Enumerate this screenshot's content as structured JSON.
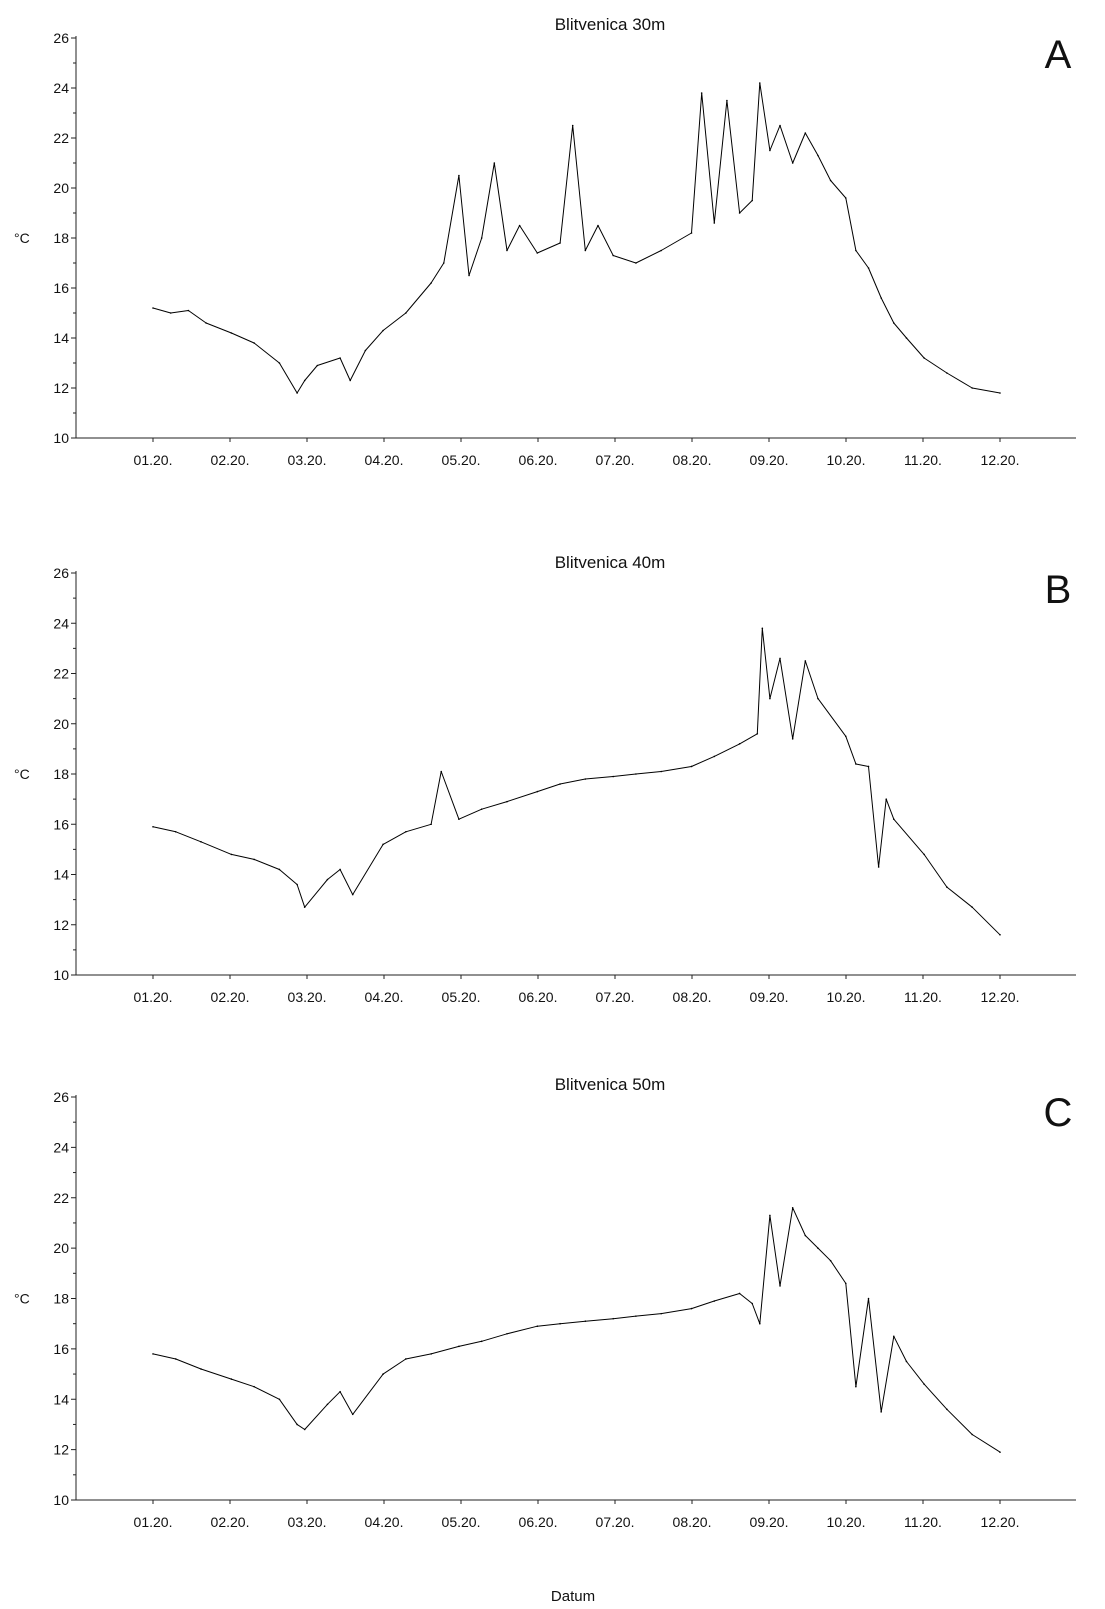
{
  "xlabel": "Datum",
  "chart_data": [
    {
      "type": "line",
      "title": "Blitvenica 30m",
      "panel_label": "A",
      "ylabel": "°C",
      "xlabel": "",
      "ylim": [
        10,
        26
      ],
      "yticks": [
        10,
        12,
        14,
        16,
        18,
        20,
        22,
        24,
        26
      ],
      "xlim": [
        "2020-01-01",
        "2020-12-01"
      ],
      "xtick_labels": [
        "01.20.",
        "02.20.",
        "03.20.",
        "04.20.",
        "05.20.",
        "06.20.",
        "07.20.",
        "08.20.",
        "09.20.",
        "10.20.",
        "11.20.",
        "12.20."
      ],
      "series": [
        {
          "x": [
            "2020-01-01",
            "2020-01-08",
            "2020-01-15",
            "2020-01-22",
            "2020-02-01",
            "2020-02-10",
            "2020-02-20",
            "2020-02-27",
            "2020-03-01",
            "2020-03-06",
            "2020-03-15",
            "2020-03-19",
            "2020-03-25",
            "2020-04-01",
            "2020-04-10",
            "2020-04-20",
            "2020-04-25",
            "2020-05-01",
            "2020-05-05",
            "2020-05-10",
            "2020-05-15",
            "2020-05-20",
            "2020-05-25",
            "2020-06-01",
            "2020-06-10",
            "2020-06-15",
            "2020-06-20",
            "2020-06-25",
            "2020-07-01",
            "2020-07-10",
            "2020-07-20",
            "2020-08-01",
            "2020-08-05",
            "2020-08-10",
            "2020-08-15",
            "2020-08-20",
            "2020-08-25",
            "2020-08-28",
            "2020-09-01",
            "2020-09-05",
            "2020-09-10",
            "2020-09-15",
            "2020-09-20",
            "2020-09-25",
            "2020-10-01",
            "2020-10-05",
            "2020-10-10",
            "2020-10-15",
            "2020-10-20",
            "2020-10-25",
            "2020-11-01",
            "2020-11-10",
            "2020-11-20",
            "2020-12-01"
          ],
          "y": [
            15.2,
            15.0,
            15.1,
            14.6,
            14.2,
            13.8,
            13.0,
            11.8,
            12.3,
            12.9,
            13.2,
            12.3,
            13.5,
            14.3,
            15.0,
            16.2,
            17.0,
            20.5,
            16.5,
            18.0,
            21.0,
            17.5,
            18.5,
            17.4,
            17.8,
            22.5,
            17.5,
            18.5,
            17.3,
            17.0,
            17.5,
            18.2,
            23.8,
            18.6,
            23.5,
            19.0,
            19.5,
            24.2,
            21.5,
            22.5,
            21.0,
            22.2,
            21.3,
            20.3,
            19.6,
            17.5,
            16.8,
            15.6,
            14.6,
            14.0,
            13.2,
            12.6,
            12.0,
            11.8
          ]
        }
      ]
    },
    {
      "type": "line",
      "title": "Blitvenica 40m",
      "panel_label": "B",
      "ylabel": "°C",
      "xlabel": "",
      "ylim": [
        10,
        26
      ],
      "yticks": [
        10,
        12,
        14,
        16,
        18,
        20,
        22,
        24,
        26
      ],
      "xlim": [
        "2020-01-01",
        "2020-12-01"
      ],
      "xtick_labels": [
        "01.20.",
        "02.20.",
        "03.20.",
        "04.20.",
        "05.20.",
        "06.20.",
        "07.20.",
        "08.20.",
        "09.20.",
        "10.20.",
        "11.20.",
        "12.20."
      ],
      "series": [
        {
          "x": [
            "2020-01-01",
            "2020-01-10",
            "2020-01-20",
            "2020-02-01",
            "2020-02-10",
            "2020-02-20",
            "2020-02-27",
            "2020-03-01",
            "2020-03-10",
            "2020-03-15",
            "2020-03-20",
            "2020-04-01",
            "2020-04-10",
            "2020-04-20",
            "2020-04-24",
            "2020-05-01",
            "2020-05-10",
            "2020-05-20",
            "2020-06-01",
            "2020-06-10",
            "2020-06-20",
            "2020-07-01",
            "2020-07-10",
            "2020-07-20",
            "2020-08-01",
            "2020-08-10",
            "2020-08-20",
            "2020-08-27",
            "2020-08-29",
            "2020-09-01",
            "2020-09-05",
            "2020-09-10",
            "2020-09-15",
            "2020-09-20",
            "2020-10-01",
            "2020-10-05",
            "2020-10-10",
            "2020-10-14",
            "2020-10-17",
            "2020-10-20",
            "2020-11-01",
            "2020-11-10",
            "2020-11-20",
            "2020-12-01"
          ],
          "y": [
            15.9,
            15.7,
            15.3,
            14.8,
            14.6,
            14.2,
            13.6,
            12.7,
            13.8,
            14.2,
            13.2,
            15.2,
            15.7,
            16.0,
            18.1,
            16.2,
            16.6,
            16.9,
            17.3,
            17.6,
            17.8,
            17.9,
            18.0,
            18.1,
            18.3,
            18.7,
            19.2,
            19.6,
            23.8,
            21.0,
            22.6,
            19.4,
            22.5,
            21.0,
            19.5,
            18.4,
            18.3,
            14.3,
            17.0,
            16.2,
            14.8,
            13.5,
            12.7,
            11.6
          ]
        }
      ]
    },
    {
      "type": "line",
      "title": "Blitvenica 50m",
      "panel_label": "C",
      "ylabel": "°C",
      "xlabel": "Datum",
      "ylim": [
        10,
        26
      ],
      "yticks": [
        10,
        12,
        14,
        16,
        18,
        20,
        22,
        24,
        26
      ],
      "xlim": [
        "2020-01-01",
        "2020-12-01"
      ],
      "xtick_labels": [
        "01.20.",
        "02.20.",
        "03.20.",
        "04.20.",
        "05.20.",
        "06.20.",
        "07.20.",
        "08.20.",
        "09.20.",
        "10.20.",
        "11.20.",
        "12.20."
      ],
      "series": [
        {
          "x": [
            "2020-01-01",
            "2020-01-10",
            "2020-01-20",
            "2020-02-01",
            "2020-02-10",
            "2020-02-20",
            "2020-02-27",
            "2020-03-01",
            "2020-03-10",
            "2020-03-15",
            "2020-03-20",
            "2020-04-01",
            "2020-04-10",
            "2020-04-20",
            "2020-05-01",
            "2020-05-10",
            "2020-05-20",
            "2020-06-01",
            "2020-06-10",
            "2020-06-20",
            "2020-07-01",
            "2020-07-10",
            "2020-07-20",
            "2020-08-01",
            "2020-08-10",
            "2020-08-20",
            "2020-08-25",
            "2020-08-28",
            "2020-09-01",
            "2020-09-05",
            "2020-09-10",
            "2020-09-15",
            "2020-09-20",
            "2020-09-25",
            "2020-10-01",
            "2020-10-05",
            "2020-10-10",
            "2020-10-15",
            "2020-10-20",
            "2020-10-25",
            "2020-11-01",
            "2020-11-10",
            "2020-11-20",
            "2020-12-01"
          ],
          "y": [
            15.8,
            15.6,
            15.2,
            14.8,
            14.5,
            14.0,
            13.0,
            12.8,
            13.8,
            14.3,
            13.4,
            15.0,
            15.6,
            15.8,
            16.1,
            16.3,
            16.6,
            16.9,
            17.0,
            17.1,
            17.2,
            17.3,
            17.4,
            17.6,
            17.9,
            18.2,
            17.8,
            17.0,
            21.3,
            18.5,
            21.6,
            20.5,
            20.0,
            19.5,
            18.6,
            14.5,
            18.0,
            13.5,
            16.5,
            15.5,
            14.6,
            13.6,
            12.6,
            11.9
          ]
        }
      ]
    }
  ]
}
